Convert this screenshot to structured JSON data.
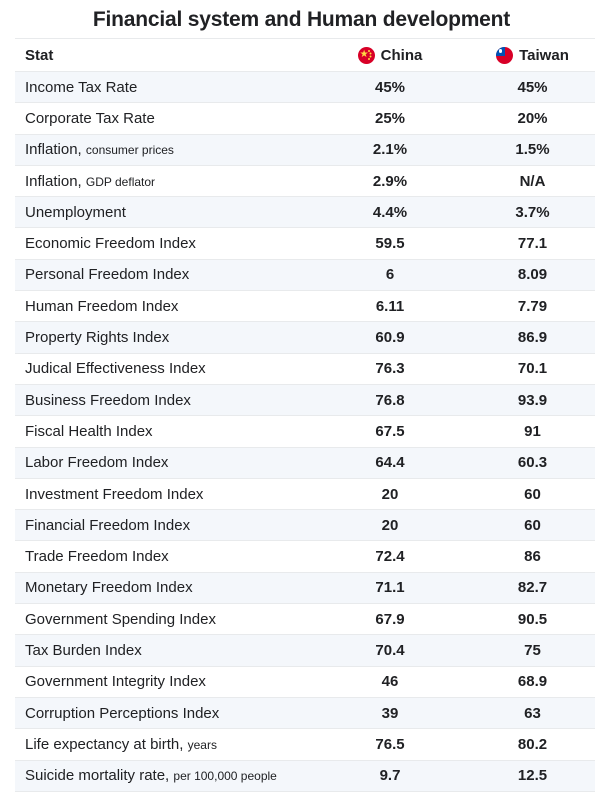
{
  "title": "Financial system and Human development",
  "header": {
    "stat": "Stat",
    "china": "China",
    "taiwan": "Taiwan"
  },
  "icons": {
    "china": "china-flag-icon",
    "taiwan": "taiwan-flag-icon"
  },
  "colors": {
    "text": "#202124",
    "row_shade": "#f4f7fb",
    "divider": "#e8eaec",
    "flag_red": "#d80027",
    "flag_blue": "#0052b4",
    "star_yellow": "#ffda44"
  },
  "chart_data": {
    "type": "table",
    "title": "Financial system and Human development",
    "columns": [
      "Stat",
      "China",
      "Taiwan"
    ],
    "rows": [
      {
        "stat": "Income Tax Rate",
        "qualifier": "",
        "china": "45%",
        "taiwan": "45%"
      },
      {
        "stat": "Corporate Tax Rate",
        "qualifier": "",
        "china": "25%",
        "taiwan": "20%"
      },
      {
        "stat": "Inflation,",
        "qualifier": "consumer prices",
        "china": "2.1%",
        "taiwan": "1.5%"
      },
      {
        "stat": "Inflation,",
        "qualifier": "GDP deflator",
        "china": "2.9%",
        "taiwan": "N/A"
      },
      {
        "stat": "Unemployment",
        "qualifier": "",
        "china": "4.4%",
        "taiwan": "3.7%"
      },
      {
        "stat": "Economic Freedom Index",
        "qualifier": "",
        "china": "59.5",
        "taiwan": "77.1"
      },
      {
        "stat": "Personal Freedom Index",
        "qualifier": "",
        "china": "6",
        "taiwan": "8.09"
      },
      {
        "stat": "Human Freedom Index",
        "qualifier": "",
        "china": "6.11",
        "taiwan": "7.79"
      },
      {
        "stat": "Property Rights Index",
        "qualifier": "",
        "china": "60.9",
        "taiwan": "86.9"
      },
      {
        "stat": "Judical Effectiveness Index",
        "qualifier": "",
        "china": "76.3",
        "taiwan": "70.1"
      },
      {
        "stat": "Business Freedom Index",
        "qualifier": "",
        "china": "76.8",
        "taiwan": "93.9"
      },
      {
        "stat": "Fiscal Health Index",
        "qualifier": "",
        "china": "67.5",
        "taiwan": "91"
      },
      {
        "stat": "Labor Freedom Index",
        "qualifier": "",
        "china": "64.4",
        "taiwan": "60.3"
      },
      {
        "stat": "Investment Freedom Index",
        "qualifier": "",
        "china": "20",
        "taiwan": "60"
      },
      {
        "stat": "Financial Freedom Index",
        "qualifier": "",
        "china": "20",
        "taiwan": "60"
      },
      {
        "stat": "Trade Freedom Index",
        "qualifier": "",
        "china": "72.4",
        "taiwan": "86"
      },
      {
        "stat": "Monetary Freedom Index",
        "qualifier": "",
        "china": "71.1",
        "taiwan": "82.7"
      },
      {
        "stat": "Government Spending Index",
        "qualifier": "",
        "china": "67.9",
        "taiwan": "90.5"
      },
      {
        "stat": "Tax Burden Index",
        "qualifier": "",
        "china": "70.4",
        "taiwan": "75"
      },
      {
        "stat": "Government Integrity Index",
        "qualifier": "",
        "china": "46",
        "taiwan": "68.9"
      },
      {
        "stat": "Corruption Perceptions Index",
        "qualifier": "",
        "china": "39",
        "taiwan": "63"
      },
      {
        "stat": "Life expectancy at birth,",
        "qualifier": "years",
        "china": "76.5",
        "taiwan": "80.2"
      },
      {
        "stat": "Suicide mortality rate,",
        "qualifier": "per 100,000 people",
        "china": "9.7",
        "taiwan": "12.5"
      }
    ]
  }
}
